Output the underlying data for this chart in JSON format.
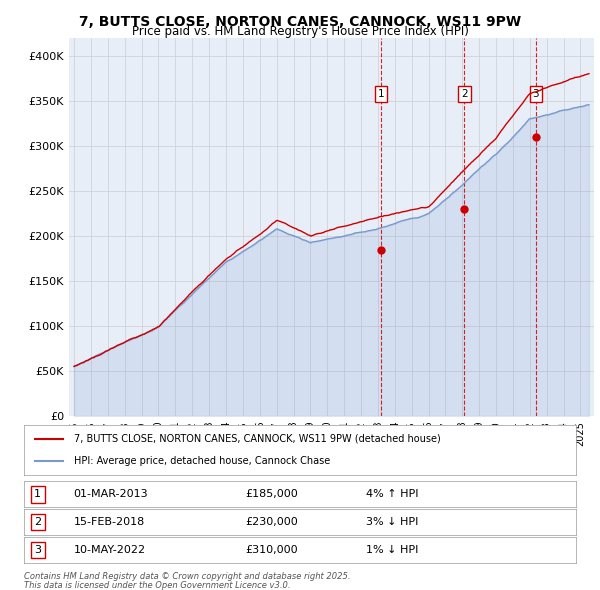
{
  "title_line1": "7, BUTTS CLOSE, NORTON CANES, CANNOCK, WS11 9PW",
  "title_line2": "Price paid vs. HM Land Registry's House Price Index (HPI)",
  "legend_label_red": "7, BUTTS CLOSE, NORTON CANES, CANNOCK, WS11 9PW (detached house)",
  "legend_label_blue": "HPI: Average price, detached house, Cannock Chase",
  "transactions": [
    {
      "num": 1,
      "date": "01-MAR-2013",
      "price": 185000,
      "pct": "4%",
      "dir": "↑"
    },
    {
      "num": 2,
      "date": "15-FEB-2018",
      "price": 230000,
      "pct": "3%",
      "dir": "↓"
    },
    {
      "num": 3,
      "date": "10-MAY-2022",
      "price": 310000,
      "pct": "1%",
      "dir": "↓"
    }
  ],
  "transaction_dates_decimal": [
    2013.17,
    2018.12,
    2022.36
  ],
  "transaction_prices": [
    185000,
    230000,
    310000
  ],
  "footnote_line1": "Contains HM Land Registry data © Crown copyright and database right 2025.",
  "footnote_line2": "This data is licensed under the Open Government Licence v3.0.",
  "ylim": [
    0,
    420000
  ],
  "yticks": [
    0,
    50000,
    100000,
    150000,
    200000,
    250000,
    300000,
    350000,
    400000
  ],
  "ytick_labels": [
    "£0",
    "£50K",
    "£100K",
    "£150K",
    "£200K",
    "£250K",
    "£300K",
    "£350K",
    "£400K"
  ],
  "background_color": "#e8eef8",
  "red_color": "#cc0000",
  "blue_color": "#7799cc",
  "grid_color": "#cccccc",
  "xlim_min": 1994.7,
  "xlim_max": 2025.8
}
